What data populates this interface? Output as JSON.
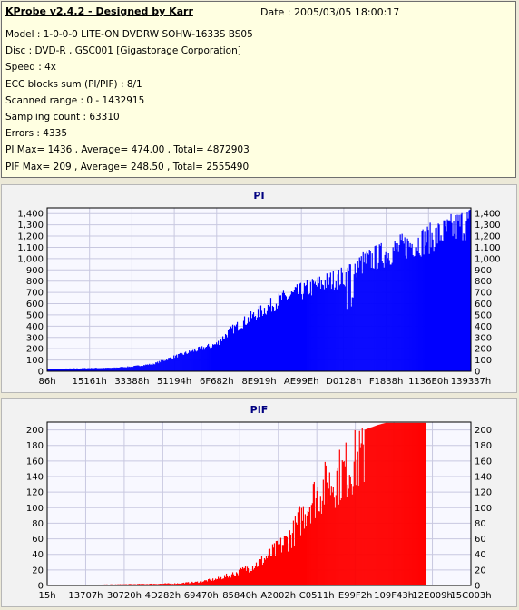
{
  "info": {
    "title": "KProbe v2.4.2 - Designed by Karr",
    "date": "Date : 2005/03/05 18:00:17",
    "lines": [
      "Model : 1-0-0-0 LITE-ON DVDRW SOHW-1633S BS05",
      "Disc : DVD-R , GSC001 [Gigastorage Corporation]",
      "Speed : 4x",
      "ECC blocks sum (PI/PIF) : 8/1",
      "Scanned range : 0 - 1432915",
      "Sampling count : 63310",
      "Errors : 4335",
      "PI Max= 1436 , Average= 474.00 , Total= 4872903",
      "PIF Max= 209 , Average= 248.50 , Total= 2555490"
    ]
  },
  "chart_data": [
    {
      "type": "area",
      "title": "PI",
      "color": "#0000ff",
      "ylim": [
        0,
        1450
      ],
      "yticks": [
        0,
        100,
        200,
        300,
        400,
        500,
        600,
        700,
        800,
        900,
        1000,
        1100,
        1200,
        1300,
        1400
      ],
      "ytick_labels": [
        "0",
        "100",
        "200",
        "300",
        "400",
        "500",
        "600",
        "700",
        "800",
        "900",
        "1,000",
        "1,100",
        "1,200",
        "1,300",
        "1,400"
      ],
      "xtick_labels": [
        "86h",
        "15161h",
        "33388h",
        "51194h",
        "6F682h",
        "8E919h",
        "AE99Eh",
        "D0128h",
        "F1838h",
        "1136E0h",
        "139337h"
      ],
      "grid": true,
      "envelope": [
        [
          0.0,
          20
        ],
        [
          0.05,
          25
        ],
        [
          0.1,
          30
        ],
        [
          0.15,
          32
        ],
        [
          0.2,
          45
        ],
        [
          0.25,
          70
        ],
        [
          0.3,
          140
        ],
        [
          0.35,
          200
        ],
        [
          0.4,
          260
        ],
        [
          0.43,
          380
        ],
        [
          0.46,
          460
        ],
        [
          0.5,
          560
        ],
        [
          0.55,
          680
        ],
        [
          0.6,
          760
        ],
        [
          0.65,
          840
        ],
        [
          0.7,
          900
        ],
        [
          0.72,
          980
        ],
        [
          0.75,
          1040
        ],
        [
          0.8,
          1120
        ],
        [
          0.85,
          1200
        ],
        [
          0.9,
          1260
        ],
        [
          0.95,
          1340
        ],
        [
          0.98,
          1400
        ],
        [
          1.0,
          1420
        ]
      ],
      "dips": [
        [
          0.72,
          780
        ],
        [
          0.715,
          820
        ]
      ]
    },
    {
      "type": "area",
      "title": "PIF",
      "color": "#ff0000",
      "ylim": [
        0,
        210
      ],
      "yticks": [
        0,
        20,
        40,
        60,
        80,
        100,
        120,
        140,
        160,
        180,
        200
      ],
      "ytick_labels": [
        "0",
        "20",
        "40",
        "60",
        "80",
        "100",
        "120",
        "140",
        "160",
        "180",
        "200"
      ],
      "xtick_labels": [
        "15h",
        "13707h",
        "30720h",
        "4D282h",
        "69470h",
        "85840h",
        "A2002h",
        "C0511h",
        "E99F2h",
        "109F43h",
        "12E009h",
        "15C003h"
      ],
      "grid": true,
      "envelope": [
        [
          0.0,
          0
        ],
        [
          0.1,
          1
        ],
        [
          0.2,
          2
        ],
        [
          0.3,
          3
        ],
        [
          0.35,
          5
        ],
        [
          0.4,
          10
        ],
        [
          0.45,
          20
        ],
        [
          0.5,
          35
        ],
        [
          0.55,
          60
        ],
        [
          0.58,
          80
        ],
        [
          0.6,
          105
        ],
        [
          0.62,
          130
        ],
        [
          0.65,
          150
        ],
        [
          0.7,
          175
        ],
        [
          0.72,
          190
        ],
        [
          0.75,
          200
        ],
        [
          0.78,
          206
        ],
        [
          0.8,
          209
        ],
        [
          1.0,
          209
        ]
      ],
      "x_end": 0.895
    }
  ]
}
